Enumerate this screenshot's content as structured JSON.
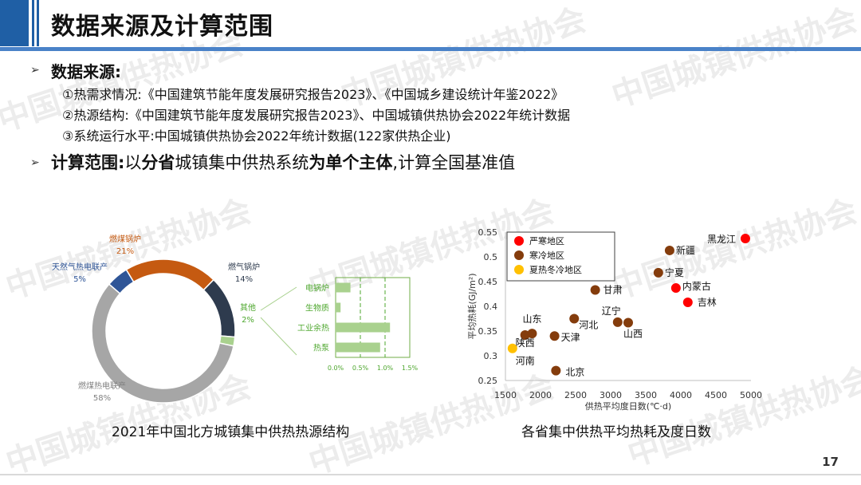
{
  "slide": {
    "title": "数据来源及计算范围",
    "page_number": "17",
    "watermark": "中国城镇供热协会"
  },
  "sources": {
    "heading": "数据来源:",
    "lines": [
      "①热需求情况:《中国建筑节能年度发展研究报告2023》、《中国城乡建设统计年鉴2022》",
      "②热源结构:《中国建筑节能年度发展研究报告2023》、中国城镇供热协会2022年统计数据",
      "③系统运行水平:中国城镇供热协会2022年统计数据(122家供热企业)"
    ]
  },
  "scope": {
    "label": "计算范围:",
    "text_1": "以",
    "bold_1": "分省",
    "text_2": "城镇集中供热系统",
    "bold_2": "为单个主体",
    "text_3": ",计算全国基准值"
  },
  "colors": {
    "accent": "#1f5fa5",
    "coal_chp": "#a6a6a6",
    "gas_chp": "#2f5597",
    "coal_boiler": "#c55a11",
    "gas_boiler": "#2e3b4e",
    "other": "#a9d18e",
    "severe_cold": "#ff0000",
    "cold": "#843c0c",
    "hot_summer_cold_winter": "#ffc000"
  },
  "chart_data": [
    {
      "type": "pie",
      "caption": "2021年中国北方城镇集中供热热源结构",
      "slices": [
        {
          "label": "燃煤热电联产",
          "pct_label": "58%",
          "value": 58,
          "color": "#a6a6a6"
        },
        {
          "label": "天然气热电联产",
          "pct_label": "5%",
          "value": 5,
          "color": "#2f5597"
        },
        {
          "label": "燃煤锅炉",
          "pct_label": "21%",
          "value": 21,
          "color": "#c55a11"
        },
        {
          "label": "燃气锅炉",
          "pct_label": "14%",
          "value": 14,
          "color": "#2e3b4e"
        },
        {
          "label": "其他",
          "pct_label": "2%",
          "value": 2,
          "color": "#a9d18e"
        }
      ]
    },
    {
      "type": "bar",
      "orientation": "horizontal",
      "categories": [
        "电锅炉",
        "生物质",
        "工业余热",
        "热泵"
      ],
      "values": [
        0.3,
        0.1,
        1.1,
        0.9
      ],
      "xlim": [
        0,
        1.5
      ],
      "xticks": [
        "0.0%",
        "0.5%",
        "1.0%",
        "1.5%"
      ],
      "color": "#a9d18e"
    },
    {
      "type": "scatter",
      "caption": "各省集中供热平均热耗及度日数",
      "xlabel": "供热平均度日数(℃·d)",
      "ylabel": "平均热耗(GJ/m²)",
      "xlim": [
        1500,
        5000
      ],
      "ylim": [
        0.25,
        0.55
      ],
      "xticks": [
        1500,
        2000,
        2500,
        3000,
        3500,
        4000,
        4500,
        5000
      ],
      "yticks": [
        "0.25",
        "0.3",
        "0.35",
        "0.4",
        "0.45",
        "0.5",
        "0.55"
      ],
      "legend_position": "top-left",
      "series": [
        {
          "name": "严寒地区",
          "color": "#ff0000",
          "points": [
            {
              "label": "黑龙江",
              "x": 4920,
              "y": 0.537
            },
            {
              "label": "内蒙古",
              "x": 3930,
              "y": 0.437
            },
            {
              "label": "吉林",
              "x": 4100,
              "y": 0.408
            }
          ]
        },
        {
          "name": "寒冷地区",
          "color": "#843c0c",
          "points": [
            {
              "label": "新疆",
              "x": 3840,
              "y": 0.513
            },
            {
              "label": "宁夏",
              "x": 3680,
              "y": 0.468
            },
            {
              "label": "甘肃",
              "x": 2780,
              "y": 0.433
            },
            {
              "label": "河北",
              "x": 2480,
              "y": 0.375
            },
            {
              "label": "辽宁",
              "x": 3100,
              "y": 0.368
            },
            {
              "label": "山西",
              "x": 3250,
              "y": 0.367
            },
            {
              "label": "山东",
              "x": 1880,
              "y": 0.345
            },
            {
              "label": "陕西",
              "x": 1780,
              "y": 0.342
            },
            {
              "label": "天津",
              "x": 2200,
              "y": 0.34
            },
            {
              "label": "北京",
              "x": 2220,
              "y": 0.27
            }
          ]
        },
        {
          "name": "夏热冬冷地区",
          "color": "#ffc000",
          "points": [
            {
              "label": "河南",
              "x": 1600,
              "y": 0.315
            }
          ]
        }
      ]
    }
  ]
}
